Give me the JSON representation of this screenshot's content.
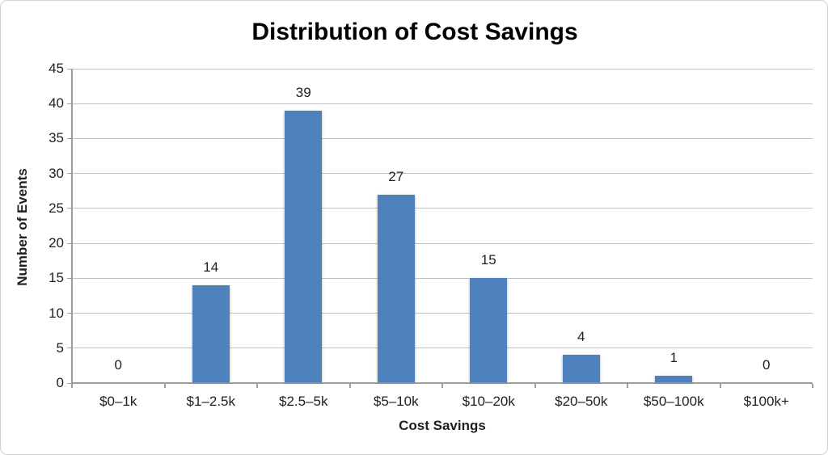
{
  "chart_data": {
    "type": "bar",
    "title": "Distribution of Cost Savings",
    "xlabel": "Cost Savings",
    "ylabel": "Number of Events",
    "categories": [
      "$0–1k",
      "$1–2.5k",
      "$2.5–5k",
      "$5–10k",
      "$10–20k",
      "$20–50k",
      "$50–100k",
      "$100k+"
    ],
    "values": [
      0,
      14,
      39,
      27,
      15,
      4,
      1,
      0
    ],
    "ylim": [
      0,
      45
    ],
    "yticks": [
      0,
      5,
      10,
      15,
      20,
      25,
      30,
      35,
      40,
      45
    ],
    "grid": true,
    "data_labels": true,
    "legend": "none",
    "colors": {
      "bar": "#4f81bd",
      "gridline": "#c0c0c0",
      "axis": "#9d9d9d",
      "text": "#1f1f1f",
      "title": "#000000"
    }
  }
}
